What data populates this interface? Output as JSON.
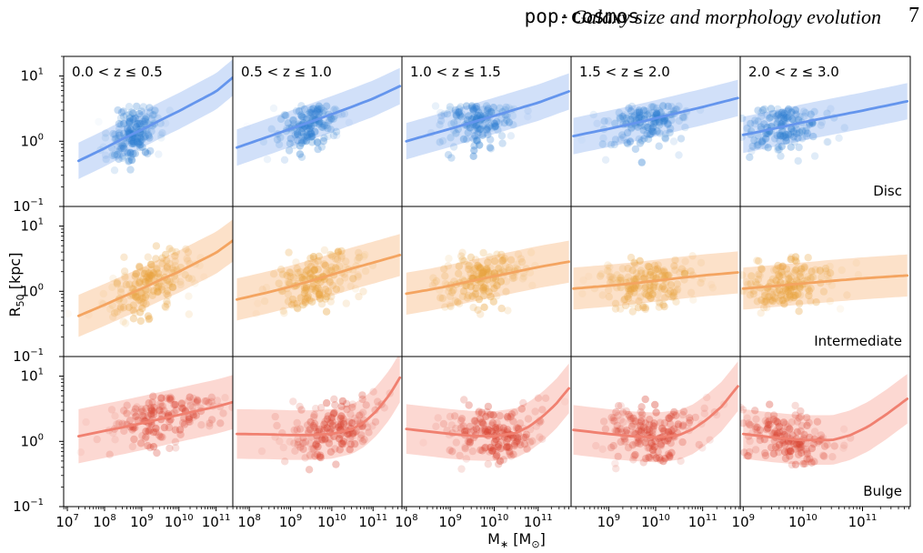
{
  "header": {
    "code_name": "pop-cosmos",
    "title_text": ": Galaxy size and morphology evolution",
    "page_number": "7"
  },
  "colors": {
    "disc_line": "#6495ed",
    "disc_band": "#c9daf8",
    "disc_points": "#2f7fd1",
    "intermediate_line": "#f4a460",
    "intermediate_band": "#fbdcc0",
    "intermediate_points": "#e8a23c",
    "bulge_line": "#f08070",
    "bulge_band": "#fbd1ca",
    "bulge_points": "#d8402e"
  },
  "chart_data": {
    "type": "scatter",
    "ylabel": "R_50 [kpc]",
    "xlabel": "M_* [M_⊙]",
    "yscale": "log",
    "xscale": "log",
    "ylim": [
      0.1,
      20
    ],
    "y_ticks": [
      {
        "value": 0.1,
        "base": "10",
        "exp": "−1"
      },
      {
        "value": 1,
        "base": "10",
        "exp": "0"
      },
      {
        "value": 10,
        "base": "10",
        "exp": "1"
      }
    ],
    "columns": [
      {
        "label": "0.0 < z ≤ 0.5",
        "xlim": [
          6.9,
          11.45
        ],
        "x_ticks": [
          7,
          8,
          9,
          10,
          11
        ]
      },
      {
        "label": "0.5 < z ≤ 1.0",
        "xlim": [
          7.6,
          11.7
        ],
        "x_ticks": [
          8,
          9,
          10,
          11
        ]
      },
      {
        "label": "1.0 < z ≤ 1.5",
        "xlim": [
          7.9,
          11.75
        ],
        "x_ticks": [
          8,
          9,
          10,
          11
        ]
      },
      {
        "label": "1.5 < z ≤ 2.0",
        "xlim": [
          8.2,
          11.8
        ],
        "x_ticks": [
          9,
          10,
          11
        ]
      },
      {
        "label": "2.0 < z ≤ 3.0",
        "xlim": [
          8.95,
          11.8
        ],
        "x_ticks": [
          9,
          10,
          11
        ]
      }
    ],
    "rows": [
      {
        "label": "Disc",
        "key": "disc",
        "panels": [
          {
            "x": [
              7.3,
              8.0,
              8.5,
              9.0,
              9.5,
              10.0,
              10.5,
              11.0,
              11.45
            ],
            "y": [
              0.5,
              0.78,
              1.1,
              1.5,
              2.1,
              2.9,
              4.1,
              5.8,
              9.5
            ],
            "band_factor": 1.9,
            "cloud": {
              "x": [
                8.2,
                9.4
              ],
              "y": [
                0.35,
                3.5
              ]
            }
          },
          {
            "x": [
              7.7,
              8.5,
              9.0,
              9.5,
              10.0,
              10.5,
              11.0,
              11.65
            ],
            "y": [
              0.8,
              1.2,
              1.55,
              2.0,
              2.6,
              3.4,
              4.5,
              7.0
            ],
            "band_factor": 1.9,
            "cloud": {
              "x": [
                8.7,
                10.1
              ],
              "y": [
                0.4,
                3.5
              ]
            }
          },
          {
            "x": [
              8.0,
              8.5,
              9.0,
              9.5,
              10.0,
              10.5,
              11.0,
              11.7
            ],
            "y": [
              1.0,
              1.25,
              1.55,
              1.95,
              2.45,
              3.1,
              3.9,
              5.8
            ],
            "band_factor": 1.9,
            "cloud": {
              "x": [
                8.9,
                10.4
              ],
              "y": [
                0.45,
                3.5
              ]
            }
          },
          {
            "x": [
              8.25,
              9.0,
              9.5,
              10.0,
              10.5,
              11.0,
              11.75
            ],
            "y": [
              1.2,
              1.55,
              1.85,
              2.25,
              2.75,
              3.35,
              4.6
            ],
            "band_factor": 1.9,
            "cloud": {
              "x": [
                9.0,
                10.6
              ],
              "y": [
                0.45,
                3.5
              ]
            }
          },
          {
            "x": [
              9.0,
              9.5,
              10.0,
              10.5,
              11.0,
              11.75
            ],
            "y": [
              1.25,
              1.55,
              1.95,
              2.4,
              2.95,
              4.1
            ],
            "band_factor": 1.9,
            "cloud": {
              "x": [
                9.0,
                10.4
              ],
              "y": [
                0.45,
                3.2
              ]
            }
          }
        ]
      },
      {
        "label": "Intermediate",
        "key": "intermediate",
        "panels": [
          {
            "x": [
              7.3,
              8.0,
              8.5,
              9.0,
              9.5,
              10.0,
              10.5,
              11.0,
              11.45
            ],
            "y": [
              0.42,
              0.62,
              0.83,
              1.1,
              1.5,
              2.0,
              2.8,
              3.9,
              6.0
            ],
            "band_factor": 2.1,
            "cloud": {
              "x": [
                8.3,
                10.2
              ],
              "y": [
                0.3,
                5.0
              ]
            }
          },
          {
            "x": [
              7.7,
              8.5,
              9.0,
              9.5,
              10.0,
              10.5,
              11.0,
              11.65
            ],
            "y": [
              0.75,
              0.98,
              1.18,
              1.45,
              1.8,
              2.25,
              2.75,
              3.6
            ],
            "band_factor": 2.1,
            "cloud": {
              "x": [
                8.7,
                10.6
              ],
              "y": [
                0.35,
                4.5
              ]
            }
          },
          {
            "x": [
              8.0,
              8.5,
              9.0,
              9.5,
              10.0,
              10.5,
              11.0,
              11.7
            ],
            "y": [
              0.92,
              1.05,
              1.22,
              1.45,
              1.7,
              2.0,
              2.35,
              2.85
            ],
            "band_factor": 2.1,
            "cloud": {
              "x": [
                8.9,
                10.6
              ],
              "y": [
                0.4,
                4.0
              ]
            }
          },
          {
            "x": [
              8.25,
              9.0,
              9.5,
              10.0,
              10.5,
              11.0,
              11.75
            ],
            "y": [
              1.1,
              1.22,
              1.32,
              1.45,
              1.6,
              1.75,
              1.95
            ],
            "band_factor": 2.1,
            "cloud": {
              "x": [
                9.0,
                10.7
              ],
              "y": [
                0.4,
                3.8
              ]
            }
          },
          {
            "x": [
              9.0,
              9.5,
              10.0,
              10.5,
              11.0,
              11.75
            ],
            "y": [
              1.1,
              1.2,
              1.32,
              1.45,
              1.58,
              1.75
            ],
            "band_factor": 2.1,
            "cloud": {
              "x": [
                9.0,
                10.5
              ],
              "y": [
                0.4,
                3.5
              ]
            }
          }
        ]
      },
      {
        "label": "Bulge",
        "key": "bulge",
        "panels": [
          {
            "x": [
              7.3,
              8.0,
              8.5,
              9.0,
              9.5,
              10.0,
              10.5,
              11.0,
              11.45
            ],
            "y": [
              1.2,
              1.45,
              1.65,
              1.9,
              2.2,
              2.55,
              2.95,
              3.4,
              4.0
            ],
            "band_factor": 2.6,
            "cloud": {
              "x": [
                8.3,
                11.1
              ],
              "y": [
                0.3,
                5.0
              ]
            }
          },
          {
            "x": [
              7.7,
              8.5,
              9.0,
              9.5,
              10.0,
              10.5,
              10.8,
              11.1,
              11.4,
              11.65
            ],
            "y": [
              1.3,
              1.28,
              1.25,
              1.25,
              1.3,
              1.55,
              2.0,
              3.0,
              5.2,
              9.5
            ],
            "band_factor": 2.4,
            "cloud": {
              "x": [
                8.9,
                11.1
              ],
              "y": [
                0.3,
                6.0
              ]
            }
          },
          {
            "x": [
              8.0,
              8.5,
              9.0,
              9.5,
              10.0,
              10.5,
              10.8,
              11.1,
              11.4,
              11.7
            ],
            "y": [
              1.55,
              1.42,
              1.3,
              1.22,
              1.2,
              1.35,
              1.7,
              2.4,
              3.7,
              6.5
            ],
            "band_factor": 2.4,
            "cloud": {
              "x": [
                9.0,
                11.0
              ],
              "y": [
                0.3,
                6.0
              ]
            }
          },
          {
            "x": [
              8.25,
              9.0,
              9.5,
              10.0,
              10.5,
              10.8,
              11.1,
              11.4,
              11.75
            ],
            "y": [
              1.5,
              1.3,
              1.2,
              1.15,
              1.25,
              1.55,
              2.2,
              3.4,
              7.0
            ],
            "band_factor": 2.4,
            "cloud": {
              "x": [
                9.0,
                11.0
              ],
              "y": [
                0.35,
                5.0
              ]
            }
          },
          {
            "x": [
              9.0,
              9.5,
              10.0,
              10.5,
              10.8,
              11.1,
              11.4,
              11.75
            ],
            "y": [
              1.3,
              1.15,
              1.05,
              1.05,
              1.25,
              1.7,
              2.6,
              4.5
            ],
            "band_factor": 2.4,
            "cloud": {
              "x": [
                9.0,
                10.5
              ],
              "y": [
                0.4,
                4.0
              ]
            }
          }
        ]
      }
    ]
  }
}
